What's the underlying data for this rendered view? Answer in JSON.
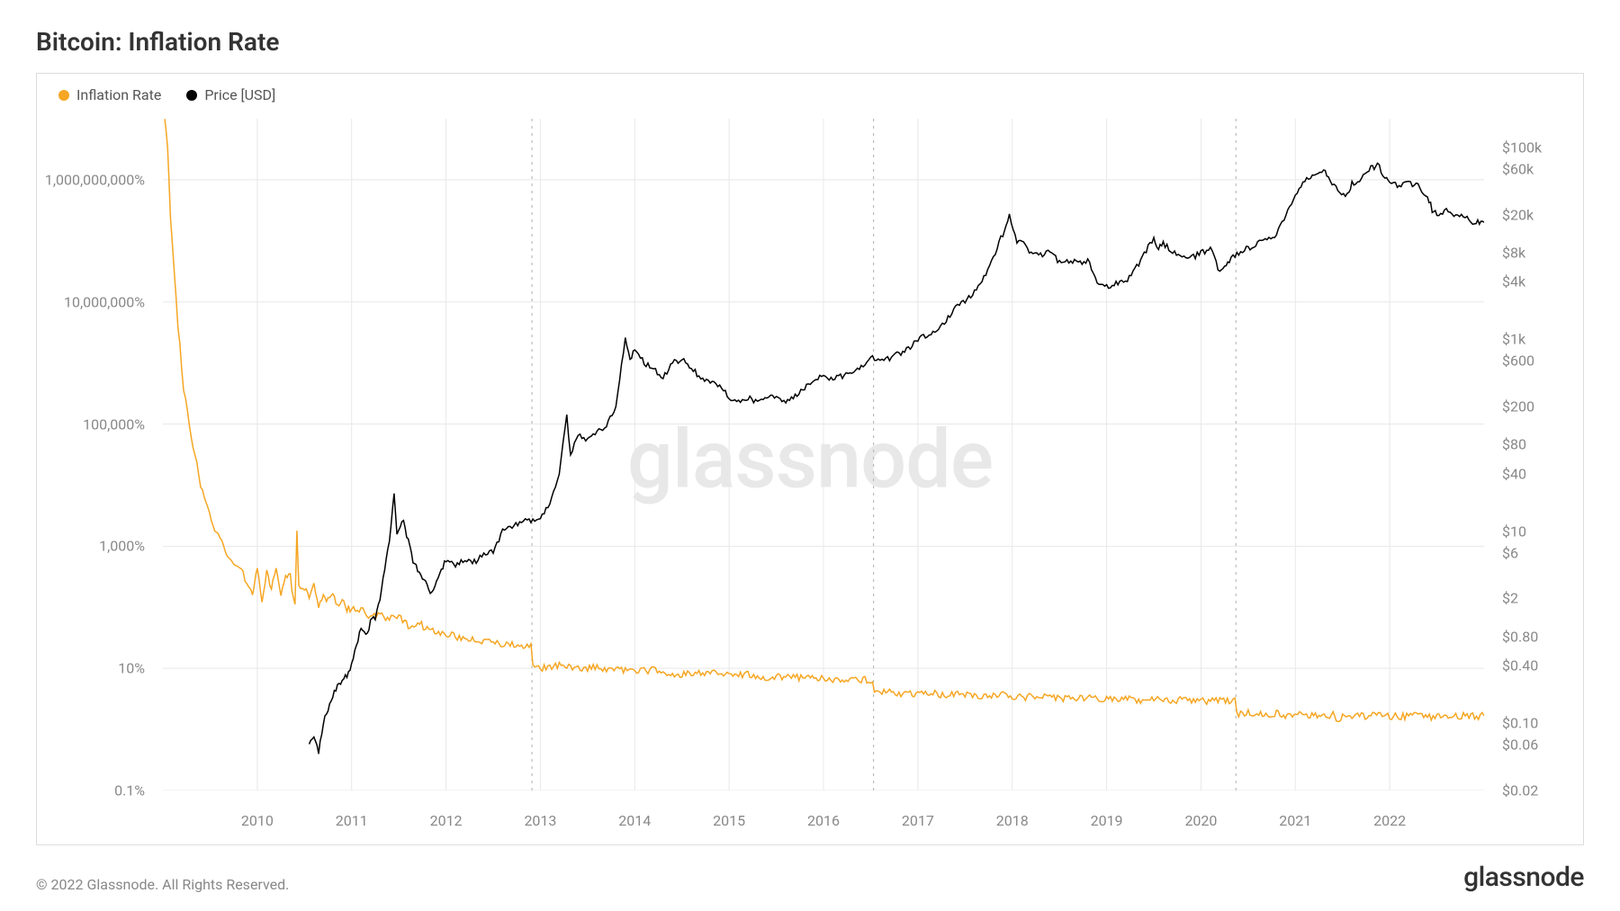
{
  "title": "Bitcoin: Inflation Rate",
  "legend": {
    "inflation": {
      "label": "Inflation Rate",
      "color": "#f5a623"
    },
    "price": {
      "label": "Price [USD]",
      "color": "#000000"
    }
  },
  "watermark": "glassnode",
  "footer": {
    "copyright": "© 2022 Glassnode. All Rights Reserved.",
    "brand": "glassnode"
  },
  "chart": {
    "background_color": "#ffffff",
    "border_color": "#dddddd",
    "grid_color": "#e8e8e8",
    "halving_line_color": "#bbbbbb",
    "x": {
      "min": 2009.0,
      "max": 2023.0,
      "ticks": [
        2010,
        2011,
        2012,
        2013,
        2014,
        2015,
        2016,
        2017,
        2018,
        2019,
        2020,
        2021,
        2022
      ],
      "labels": [
        "2010",
        "2011",
        "2012",
        "2013",
        "2014",
        "2015",
        "2016",
        "2017",
        "2018",
        "2019",
        "2020",
        "2021",
        "2022"
      ]
    },
    "y_left": {
      "scale": "log",
      "min_log10": -1,
      "max_log10": 10,
      "ticks_log10": [
        -1,
        1,
        3,
        5,
        7,
        9
      ],
      "labels": [
        "0.1%",
        "10%",
        "1,000%",
        "100,000%",
        "10,000,000%",
        "1,000,000,000%"
      ]
    },
    "y_right": {
      "scale": "log",
      "min_log10": -1.7,
      "max_log10": 5.3,
      "ticks": [
        0.02,
        0.06,
        0.1,
        0.4,
        0.8,
        2,
        6,
        10,
        40,
        80,
        200,
        600,
        1000,
        4000,
        8000,
        20000,
        60000,
        100000
      ],
      "labels": [
        "$0.02",
        "$0.06",
        "$0.10",
        "$0.40",
        "$0.80",
        "$2",
        "$6",
        "$10",
        "$40",
        "$80",
        "$200",
        "$600",
        "$1k",
        "$4k",
        "$8k",
        "$20k",
        "$60k",
        "$100k"
      ]
    },
    "halving_dates": [
      2012.91,
      2016.53,
      2020.37
    ],
    "series": {
      "inflation": {
        "color": "#f5a623",
        "line_width": 1.5,
        "points": [
          [
            2009.02,
            10.0
          ],
          [
            2009.05,
            9.5
          ],
          [
            2009.08,
            8.4
          ],
          [
            2009.12,
            7.5
          ],
          [
            2009.16,
            6.6
          ],
          [
            2009.22,
            5.6
          ],
          [
            2009.3,
            4.8
          ],
          [
            2009.4,
            4.0
          ],
          [
            2009.55,
            3.3
          ],
          [
            2009.7,
            2.8
          ],
          [
            2009.85,
            2.55
          ],
          [
            2009.95,
            2.2
          ],
          [
            2010.0,
            2.7
          ],
          [
            2010.05,
            2.1
          ],
          [
            2010.1,
            2.55
          ],
          [
            2010.15,
            2.3
          ],
          [
            2010.2,
            2.6
          ],
          [
            2010.25,
            2.2
          ],
          [
            2010.3,
            2.55
          ],
          [
            2010.35,
            2.5
          ],
          [
            2010.4,
            2.0
          ],
          [
            2010.42,
            3.2
          ],
          [
            2010.44,
            2.4
          ],
          [
            2010.5,
            2.3
          ],
          [
            2010.55,
            2.15
          ],
          [
            2010.6,
            2.4
          ],
          [
            2010.65,
            2.0
          ],
          [
            2010.7,
            2.25
          ],
          [
            2010.75,
            2.1
          ],
          [
            2010.8,
            2.2
          ],
          [
            2010.85,
            2.0
          ],
          [
            2010.9,
            2.1
          ],
          [
            2010.95,
            1.95
          ],
          [
            2011.0,
            2.0
          ],
          [
            2011.1,
            1.95
          ],
          [
            2011.2,
            1.85
          ],
          [
            2011.3,
            1.9
          ],
          [
            2011.4,
            1.8
          ],
          [
            2011.5,
            1.85
          ],
          [
            2011.6,
            1.7
          ],
          [
            2011.7,
            1.75
          ],
          [
            2011.8,
            1.65
          ],
          [
            2011.9,
            1.6
          ],
          [
            2012.0,
            1.55
          ],
          [
            2012.2,
            1.5
          ],
          [
            2012.4,
            1.45
          ],
          [
            2012.6,
            1.4
          ],
          [
            2012.8,
            1.38
          ],
          [
            2012.9,
            1.35
          ],
          [
            2012.92,
            1.05
          ],
          [
            2013.0,
            1.0
          ],
          [
            2013.2,
            1.05
          ],
          [
            2013.4,
            1.0
          ],
          [
            2013.6,
            1.02
          ],
          [
            2013.8,
            0.98
          ],
          [
            2014.0,
            0.95
          ],
          [
            2014.2,
            0.97
          ],
          [
            2014.4,
            0.92
          ],
          [
            2014.6,
            0.9
          ],
          [
            2014.8,
            0.92
          ],
          [
            2015.0,
            0.88
          ],
          [
            2015.2,
            0.9
          ],
          [
            2015.4,
            0.85
          ],
          [
            2015.6,
            0.87
          ],
          [
            2015.8,
            0.83
          ],
          [
            2016.0,
            0.85
          ],
          [
            2016.2,
            0.8
          ],
          [
            2016.4,
            0.82
          ],
          [
            2016.52,
            0.8
          ],
          [
            2016.54,
            0.6
          ],
          [
            2016.7,
            0.62
          ],
          [
            2016.9,
            0.58
          ],
          [
            2017.1,
            0.6
          ],
          [
            2017.3,
            0.55
          ],
          [
            2017.5,
            0.58
          ],
          [
            2017.7,
            0.54
          ],
          [
            2017.9,
            0.56
          ],
          [
            2018.1,
            0.52
          ],
          [
            2018.3,
            0.55
          ],
          [
            2018.5,
            0.5
          ],
          [
            2018.7,
            0.53
          ],
          [
            2018.9,
            0.5
          ],
          [
            2019.1,
            0.52
          ],
          [
            2019.3,
            0.48
          ],
          [
            2019.5,
            0.5
          ],
          [
            2019.7,
            0.47
          ],
          [
            2019.9,
            0.49
          ],
          [
            2020.1,
            0.46
          ],
          [
            2020.3,
            0.47
          ],
          [
            2020.36,
            0.46
          ],
          [
            2020.38,
            0.25
          ],
          [
            2020.5,
            0.27
          ],
          [
            2020.65,
            0.23
          ],
          [
            2020.8,
            0.26
          ],
          [
            2020.95,
            0.22
          ],
          [
            2021.1,
            0.25
          ],
          [
            2021.25,
            0.21
          ],
          [
            2021.4,
            0.24
          ],
          [
            2021.45,
            0.15
          ],
          [
            2021.5,
            0.23
          ],
          [
            2021.7,
            0.22
          ],
          [
            2021.9,
            0.24
          ],
          [
            2022.1,
            0.21
          ],
          [
            2022.3,
            0.23
          ],
          [
            2022.5,
            0.2
          ],
          [
            2022.7,
            0.22
          ],
          [
            2022.9,
            0.21
          ],
          [
            2023.0,
            0.22
          ]
        ],
        "noise_amplitude_log10": 0.06
      },
      "price": {
        "color": "#000000",
        "line_width": 1.5,
        "points": [
          [
            2010.55,
            -1.22
          ],
          [
            2010.6,
            -1.15
          ],
          [
            2010.65,
            -1.3
          ],
          [
            2010.7,
            -1.0
          ],
          [
            2010.75,
            -0.85
          ],
          [
            2010.8,
            -0.7
          ],
          [
            2010.85,
            -0.6
          ],
          [
            2010.9,
            -0.55
          ],
          [
            2010.95,
            -0.5
          ],
          [
            2011.0,
            -0.4
          ],
          [
            2011.05,
            -0.2
          ],
          [
            2011.1,
            0.0
          ],
          [
            2011.15,
            -0.1
          ],
          [
            2011.2,
            0.05
          ],
          [
            2011.25,
            0.1
          ],
          [
            2011.3,
            0.3
          ],
          [
            2011.35,
            0.6
          ],
          [
            2011.4,
            0.9
          ],
          [
            2011.45,
            1.4
          ],
          [
            2011.48,
            1.0
          ],
          [
            2011.55,
            1.1
          ],
          [
            2011.6,
            0.9
          ],
          [
            2011.65,
            0.7
          ],
          [
            2011.7,
            0.6
          ],
          [
            2011.75,
            0.5
          ],
          [
            2011.8,
            0.45
          ],
          [
            2011.85,
            0.35
          ],
          [
            2011.9,
            0.5
          ],
          [
            2011.95,
            0.6
          ],
          [
            2012.0,
            0.7
          ],
          [
            2012.1,
            0.65
          ],
          [
            2012.2,
            0.7
          ],
          [
            2012.3,
            0.68
          ],
          [
            2012.4,
            0.75
          ],
          [
            2012.5,
            0.8
          ],
          [
            2012.6,
            1.0
          ],
          [
            2012.7,
            1.05
          ],
          [
            2012.8,
            1.1
          ],
          [
            2012.9,
            1.12
          ],
          [
            2013.0,
            1.15
          ],
          [
            2013.1,
            1.3
          ],
          [
            2013.2,
            1.6
          ],
          [
            2013.28,
            2.2
          ],
          [
            2013.32,
            1.8
          ],
          [
            2013.4,
            2.0
          ],
          [
            2013.5,
            1.95
          ],
          [
            2013.6,
            2.05
          ],
          [
            2013.7,
            2.1
          ],
          [
            2013.8,
            2.3
          ],
          [
            2013.9,
            3.0
          ],
          [
            2013.95,
            2.8
          ],
          [
            2014.0,
            2.9
          ],
          [
            2014.1,
            2.75
          ],
          [
            2014.2,
            2.7
          ],
          [
            2014.3,
            2.6
          ],
          [
            2014.4,
            2.75
          ],
          [
            2014.5,
            2.8
          ],
          [
            2014.6,
            2.7
          ],
          [
            2014.7,
            2.6
          ],
          [
            2014.8,
            2.55
          ],
          [
            2014.9,
            2.5
          ],
          [
            2015.0,
            2.4
          ],
          [
            2015.1,
            2.35
          ],
          [
            2015.2,
            2.4
          ],
          [
            2015.3,
            2.35
          ],
          [
            2015.4,
            2.38
          ],
          [
            2015.5,
            2.42
          ],
          [
            2015.6,
            2.35
          ],
          [
            2015.7,
            2.4
          ],
          [
            2015.8,
            2.5
          ],
          [
            2015.9,
            2.6
          ],
          [
            2016.0,
            2.62
          ],
          [
            2016.1,
            2.58
          ],
          [
            2016.2,
            2.62
          ],
          [
            2016.3,
            2.65
          ],
          [
            2016.4,
            2.7
          ],
          [
            2016.5,
            2.82
          ],
          [
            2016.6,
            2.78
          ],
          [
            2016.7,
            2.8
          ],
          [
            2016.8,
            2.85
          ],
          [
            2016.9,
            2.9
          ],
          [
            2017.0,
            3.0
          ],
          [
            2017.1,
            3.05
          ],
          [
            2017.2,
            3.1
          ],
          [
            2017.3,
            3.2
          ],
          [
            2017.4,
            3.35
          ],
          [
            2017.5,
            3.4
          ],
          [
            2017.6,
            3.5
          ],
          [
            2017.7,
            3.65
          ],
          [
            2017.8,
            3.85
          ],
          [
            2017.9,
            4.1
          ],
          [
            2017.97,
            4.28
          ],
          [
            2018.05,
            4.0
          ],
          [
            2018.1,
            4.05
          ],
          [
            2018.2,
            3.9
          ],
          [
            2018.3,
            3.88
          ],
          [
            2018.4,
            3.92
          ],
          [
            2018.5,
            3.8
          ],
          [
            2018.6,
            3.82
          ],
          [
            2018.7,
            3.8
          ],
          [
            2018.8,
            3.82
          ],
          [
            2018.9,
            3.6
          ],
          [
            2019.0,
            3.55
          ],
          [
            2019.1,
            3.58
          ],
          [
            2019.2,
            3.6
          ],
          [
            2019.3,
            3.72
          ],
          [
            2019.4,
            3.9
          ],
          [
            2019.5,
            4.05
          ],
          [
            2019.55,
            3.95
          ],
          [
            2019.6,
            4.0
          ],
          [
            2019.7,
            3.92
          ],
          [
            2019.8,
            3.88
          ],
          [
            2019.9,
            3.85
          ],
          [
            2020.0,
            3.9
          ],
          [
            2020.1,
            3.95
          ],
          [
            2020.2,
            3.7
          ],
          [
            2020.25,
            3.78
          ],
          [
            2020.3,
            3.82
          ],
          [
            2020.4,
            3.9
          ],
          [
            2020.5,
            3.95
          ],
          [
            2020.6,
            4.0
          ],
          [
            2020.7,
            4.05
          ],
          [
            2020.8,
            4.1
          ],
          [
            2020.9,
            4.3
          ],
          [
            2021.0,
            4.5
          ],
          [
            2021.1,
            4.65
          ],
          [
            2021.2,
            4.72
          ],
          [
            2021.3,
            4.78
          ],
          [
            2021.35,
            4.7
          ],
          [
            2021.45,
            4.55
          ],
          [
            2021.55,
            4.5
          ],
          [
            2021.6,
            4.62
          ],
          [
            2021.7,
            4.68
          ],
          [
            2021.8,
            4.78
          ],
          [
            2021.87,
            4.82
          ],
          [
            2021.95,
            4.7
          ],
          [
            2022.0,
            4.65
          ],
          [
            2022.1,
            4.6
          ],
          [
            2022.2,
            4.62
          ],
          [
            2022.3,
            4.6
          ],
          [
            2022.4,
            4.5
          ],
          [
            2022.45,
            4.35
          ],
          [
            2022.5,
            4.3
          ],
          [
            2022.6,
            4.35
          ],
          [
            2022.7,
            4.3
          ],
          [
            2022.8,
            4.28
          ],
          [
            2022.88,
            4.2
          ],
          [
            2022.95,
            4.23
          ],
          [
            2023.0,
            4.22
          ]
        ],
        "noise_amplitude_log10": 0.03
      }
    }
  }
}
